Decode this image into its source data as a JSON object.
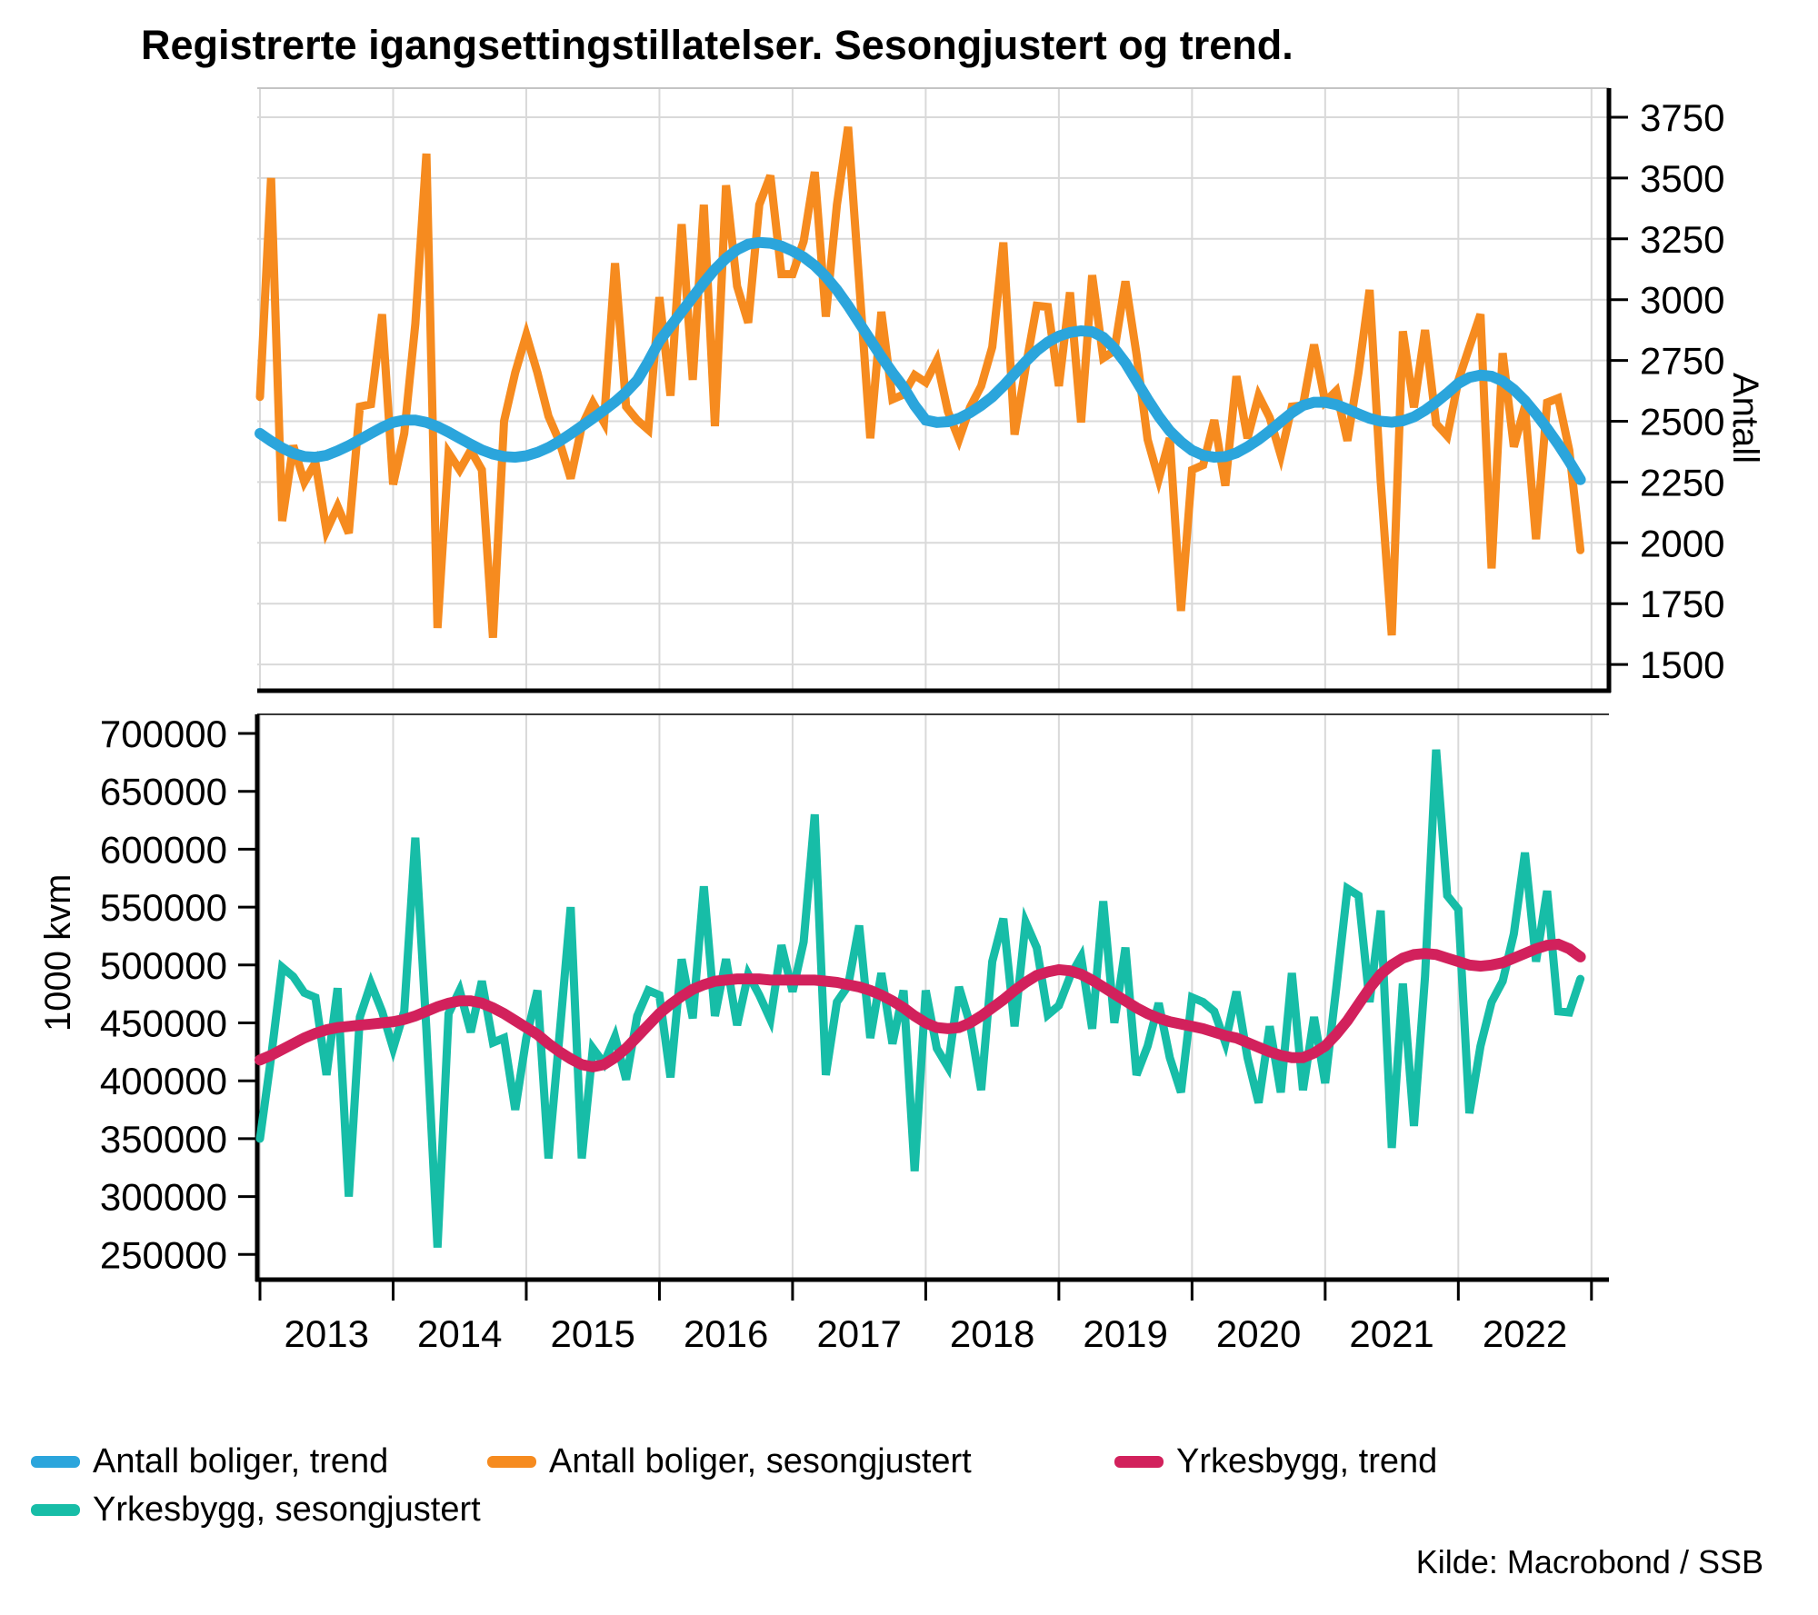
{
  "title": "Registrerte igangsettingstillatelser. Sesongjustert og trend.",
  "source": "Kilde: Macrobond / SSB",
  "top_panel": {
    "y_axis_label": "Antall",
    "y_ticks": [
      1500,
      1750,
      2000,
      2250,
      2500,
      2750,
      3000,
      3250,
      3500,
      3750
    ],
    "y_range": [
      1455,
      3870
    ]
  },
  "bottom_panel": {
    "y_axis_label": "1000 kvm",
    "y_ticks": [
      250000,
      300000,
      350000,
      400000,
      450000,
      500000,
      550000,
      600000,
      650000,
      700000
    ],
    "y_range": [
      228000,
      717000
    ]
  },
  "x_axis": {
    "year_labels": [
      "2013",
      "2014",
      "2015",
      "2016",
      "2017",
      "2018",
      "2019",
      "2020",
      "2021",
      "2022"
    ]
  },
  "legend": [
    {
      "label": "Antall boliger, trend",
      "color": "#2BA5DC"
    },
    {
      "label": "Antall boliger, sesongjustert",
      "color": "#F68B1F"
    },
    {
      "label": "Yrkesbygg, trend",
      "color": "#D2215C"
    },
    {
      "label": "Yrkesbygg, sesongjustert",
      "color": "#17BDA7"
    }
  ],
  "colors": {
    "grid": "#d9d9d9",
    "frame": "#000000",
    "panel_top_border": "#c4c4c4",
    "bottom_panel_top_border": "#3a3a3a"
  },
  "chart_data": [
    {
      "type": "line",
      "title": "Antall boliger (top panel)",
      "ylabel": "Antall",
      "ylim": [
        1455,
        3870
      ],
      "x_start": "2013-01",
      "x_freq": "monthly",
      "grid": "horizontal-and-vertical",
      "series": [
        {
          "name": "Antall boliger, sesongjustert",
          "color": "#F68B1F",
          "width": 9,
          "values": [
            2600,
            3500,
            2090,
            2400,
            2250,
            2330,
            2050,
            2150,
            2040,
            2560,
            2570,
            2940,
            2240,
            2450,
            2900,
            3600,
            1650,
            2370,
            2300,
            2380,
            2300,
            1610,
            2500,
            2700,
            2855,
            2700,
            2520,
            2415,
            2265,
            2480,
            2576,
            2495,
            3150,
            2560,
            2505,
            2465,
            3010,
            2605,
            3310,
            2670,
            3390,
            2480,
            3470,
            3055,
            2905,
            3390,
            3510,
            3105,
            3105,
            3240,
            3525,
            2930,
            3390,
            3710,
            3070,
            2430,
            2950,
            2590,
            2610,
            2690,
            2660,
            2750,
            2540,
            2425,
            2557,
            2645,
            2805,
            3235,
            2445,
            2720,
            2975,
            2970,
            2645,
            3030,
            2495,
            3100,
            2760,
            2790,
            3075,
            2775,
            2425,
            2262,
            2430,
            1720,
            2300,
            2320,
            2505,
            2235,
            2685,
            2430,
            2605,
            2515,
            2360,
            2560,
            2565,
            2815,
            2580,
            2625,
            2420,
            2700,
            3040,
            2255,
            1620,
            2870,
            2557,
            2875,
            2490,
            2440,
            2667,
            2805,
            2940,
            1895,
            2780,
            2395,
            2562,
            2015,
            2577,
            2595,
            2380,
            1970
          ]
        },
        {
          "name": "Antall boliger, trend",
          "color": "#2BA5DC",
          "width": 12,
          "values": [
            2450,
            2418,
            2390,
            2368,
            2355,
            2352,
            2360,
            2378,
            2400,
            2425,
            2450,
            2475,
            2495,
            2505,
            2505,
            2495,
            2478,
            2455,
            2430,
            2405,
            2382,
            2365,
            2355,
            2352,
            2358,
            2372,
            2392,
            2418,
            2448,
            2480,
            2512,
            2545,
            2580,
            2620,
            2668,
            2745,
            2830,
            2890,
            2950,
            3010,
            3070,
            3125,
            3170,
            3205,
            3228,
            3235,
            3232,
            3220,
            3200,
            3175,
            3140,
            3095,
            3040,
            2975,
            2905,
            2835,
            2765,
            2700,
            2640,
            2565,
            2505,
            2495,
            2498,
            2512,
            2535,
            2565,
            2600,
            2645,
            2695,
            2745,
            2790,
            2825,
            2850,
            2865,
            2872,
            2868,
            2845,
            2800,
            2740,
            2665,
            2590,
            2520,
            2460,
            2415,
            2380,
            2360,
            2352,
            2355,
            2370,
            2395,
            2425,
            2460,
            2498,
            2535,
            2565,
            2578,
            2578,
            2568,
            2550,
            2530,
            2512,
            2500,
            2496,
            2502,
            2518,
            2545,
            2578,
            2615,
            2655,
            2680,
            2690,
            2685,
            2665,
            2630,
            2585,
            2530,
            2470,
            2405,
            2335,
            2260
          ]
        }
      ]
    },
    {
      "type": "line",
      "title": "Yrkesbygg (bottom panel)",
      "ylabel": "1000 kvm",
      "ylim": [
        228000,
        717000
      ],
      "x_start": "2013-01",
      "x_freq": "monthly",
      "grid": "vertical-only",
      "series": [
        {
          "name": "Yrkesbygg, sesongjustert",
          "color": "#17BDA7",
          "width": 9,
          "values": [
            350000,
            420000,
            498000,
            490000,
            476000,
            472000,
            405000,
            480000,
            300000,
            455000,
            484000,
            460000,
            428000,
            460000,
            610000,
            444000,
            256000,
            458000,
            478000,
            442000,
            486000,
            433000,
            437000,
            375000,
            437000,
            478000,
            333000,
            440000,
            550000,
            333000,
            428000,
            415000,
            438000,
            401000,
            456000,
            478000,
            474000,
            403000,
            505000,
            454000,
            568000,
            456000,
            505000,
            448000,
            492000,
            474000,
            453000,
            517000,
            477000,
            520000,
            630000,
            405000,
            468000,
            482000,
            534000,
            437000,
            493000,
            432000,
            478000,
            322000,
            478000,
            428000,
            412000,
            481000,
            449000,
            392000,
            503000,
            540000,
            447000,
            537000,
            515000,
            457000,
            465000,
            490000,
            507000,
            445000,
            555000,
            450000,
            515000,
            405000,
            430000,
            467000,
            420000,
            390000,
            472000,
            468000,
            460000,
            433000,
            477000,
            420000,
            381000,
            447000,
            390000,
            493000,
            392000,
            455000,
            398000,
            480000,
            566000,
            560000,
            468000,
            547000,
            342000,
            484000,
            361000,
            490000,
            686000,
            560000,
            548000,
            372000,
            430000,
            468000,
            486000,
            527000,
            597000,
            503000,
            564000,
            460000,
            459000,
            488000
          ]
        },
        {
          "name": "Yrkesbygg, trend",
          "color": "#D2215C",
          "width": 12,
          "values": [
            418000,
            422000,
            427000,
            432000,
            437000,
            441000,
            444000,
            446000,
            447000,
            448000,
            449000,
            450000,
            451000,
            453000,
            456000,
            460000,
            464000,
            467000,
            469000,
            469000,
            467000,
            463000,
            458000,
            452000,
            446000,
            440000,
            432000,
            425000,
            419000,
            414000,
            412000,
            414000,
            420000,
            428000,
            438000,
            448000,
            458000,
            466000,
            473000,
            479000,
            483000,
            486000,
            487000,
            488000,
            488000,
            488000,
            487000,
            487000,
            487000,
            487000,
            487000,
            486000,
            485000,
            483000,
            481000,
            478000,
            474000,
            469000,
            463000,
            456000,
            450000,
            446000,
            445000,
            446000,
            450000,
            456000,
            463000,
            470000,
            478000,
            485000,
            491000,
            494000,
            496000,
            495000,
            492000,
            487000,
            481000,
            475000,
            469000,
            463000,
            458000,
            454000,
            451000,
            449000,
            447000,
            445000,
            442000,
            439000,
            437000,
            433000,
            429000,
            425000,
            422000,
            420000,
            420000,
            424000,
            430000,
            440000,
            452000,
            466000,
            480000,
            492000,
            500000,
            506000,
            509000,
            510000,
            509000,
            506000,
            503000,
            500000,
            499000,
            500000,
            502000,
            506000,
            510000,
            514000,
            517000,
            518000,
            514000,
            507000
          ]
        }
      ]
    }
  ]
}
